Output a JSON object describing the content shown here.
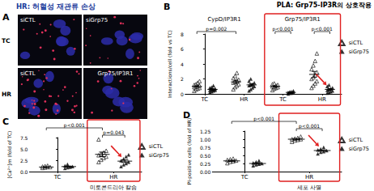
{
  "panel_a": {
    "panel": "A",
    "title": "HR: 허혈성 재관류 손상",
    "rows": [
      "TC",
      "HR"
    ],
    "images": [
      {
        "row": "TC",
        "label": "siCTL"
      },
      {
        "row": "TC",
        "label": "siGrp75"
      },
      {
        "row": "HR",
        "label": "siCTL"
      },
      {
        "row": "HR"
      }
    ],
    "stain_label": "Grp75/IP3R1"
  },
  "chart_data": [
    {
      "panel": "B",
      "type": "scatter",
      "title": "PLA: Grp75-IP3R의 상호작용",
      "ylabel": "Interactions/cell (fold vs TC)",
      "categories": [
        "TC",
        "HR",
        "TC",
        "HR"
      ],
      "groups": [
        {
          "label": "CypD/IP3R1",
          "categories": [
            0,
            1
          ]
        },
        {
          "label": "Grp75/IP3R1",
          "categories": [
            2,
            3
          ]
        }
      ],
      "ylim": [
        0,
        8
      ],
      "yticks": [
        0,
        2,
        4,
        6,
        8
      ],
      "grid": false,
      "legend": "right",
      "series": [
        {
          "name": "siCTL",
          "color": "#000000",
          "marker": "open-triangle",
          "values": [
            [
              0.4,
              0.6,
              0.7,
              0.8,
              0.9,
              1.0,
              1.0,
              1.1,
              1.2,
              1.3,
              1.5,
              1.7
            ],
            [
              0.6,
              0.9,
              1.1,
              1.3,
              1.5,
              1.6,
              1.8,
              1.9,
              2.1,
              2.4,
              2.8
            ],
            [
              0.5,
              0.7,
              0.8,
              0.9,
              1.0,
              1.0,
              1.1,
              1.2,
              1.3,
              1.4
            ],
            [
              0.8,
              1.1,
              1.4,
              1.7,
              2.0,
              2.2,
              2.5,
              2.9,
              3.3,
              3.8,
              4.4,
              5.4
            ]
          ],
          "mean": [
            1.0,
            1.6,
            1.0,
            2.6
          ],
          "error": [
            0.1,
            0.2,
            0.08,
            0.4
          ]
        },
        {
          "name": "siGrp75",
          "color": "#000000",
          "marker": "triangle",
          "values": [
            [
              0.2,
              0.3,
              0.4,
              0.5,
              0.5,
              0.6,
              0.6,
              0.7,
              0.8,
              0.9,
              1.1
            ],
            [
              0.4,
              0.6,
              0.8,
              1.0,
              1.1,
              1.2,
              1.3,
              1.5,
              1.7,
              2.0
            ],
            [
              0.0,
              0.1,
              0.1,
              0.2,
              0.2,
              0.3,
              0.3,
              0.4
            ],
            [
              0.1,
              0.2,
              0.3,
              0.4,
              0.5,
              0.6,
              0.7,
              0.8,
              1.0,
              1.2
            ]
          ],
          "mean": [
            0.6,
            1.2,
            0.2,
            0.6
          ],
          "error": [
            0.08,
            0.15,
            0.05,
            0.1
          ]
        }
      ],
      "comparisons": [
        {
          "text": "p=0.002",
          "between": [
            [
              0,
              0
            ],
            [
              1,
              0
            ]
          ]
        },
        {
          "text": "p<0.001",
          "between": [
            [
              2,
              0
            ],
            [
              2,
              1
            ]
          ]
        },
        {
          "text": "p<0.001",
          "between": [
            [
              3,
              0
            ],
            [
              3,
              1
            ]
          ]
        }
      ]
    },
    {
      "panel": "C",
      "type": "scatter",
      "title": "미토콘드리아 칼슘",
      "ylabel": "[Ca²⁺]m (fold of TC)",
      "categories": [
        "TC",
        "HR"
      ],
      "ylim": [
        0,
        7.5
      ],
      "yticks": [
        {
          "value": 0,
          "label": "0.0"
        },
        2.5,
        {
          "value": 5,
          "label": "5.0"
        },
        7.5
      ],
      "grid": false,
      "legend": "right",
      "series": [
        {
          "name": "siCTL",
          "color": "#000000",
          "marker": "open-triangle",
          "values": [
            [
              0.8,
              0.9,
              1.0,
              1.0,
              1.1,
              1.2,
              1.3
            ],
            [
              2.1,
              2.6,
              3.0,
              3.3,
              3.6,
              3.9,
              4.2,
              4.6,
              7.1
            ]
          ],
          "mean": [
            1.0,
            3.8
          ],
          "error": [
            0.07,
            0.5
          ]
        },
        {
          "name": "siGrp75",
          "color": "#000000",
          "marker": "triangle",
          "values": [
            [
              0.7,
              0.9,
              1.0,
              1.1,
              1.3,
              1.6
            ],
            [
              1.1,
              1.5,
              1.8,
              2.1,
              2.4,
              2.8,
              3.3,
              3.7
            ]
          ],
          "mean": [
            1.1,
            2.3
          ],
          "error": [
            0.1,
            0.3
          ]
        }
      ],
      "comparisons": [
        {
          "text": "p<0.001",
          "between": [
            [
              0,
              0
            ],
            [
              1,
              0
            ]
          ]
        },
        {
          "text": "p=0.043",
          "between": [
            [
              1,
              0
            ],
            [
              1,
              1
            ]
          ]
        }
      ]
    },
    {
      "panel": "D",
      "type": "scatter",
      "title": "세포 사멸",
      "ylabel": "PI-positive cells (fold of HR)",
      "categories": [
        "TC",
        "HR"
      ],
      "ylim": [
        0,
        1.25
      ],
      "yticks": [
        {
          "value": 0,
          "label": "0.00"
        },
        0.25,
        {
          "value": 0.5,
          "label": "0.50"
        },
        0.75,
        {
          "value": 1,
          "label": "1.00"
        },
        1.25
      ],
      "grid": false,
      "legend": "right",
      "series": [
        {
          "name": "siCTL",
          "color": "#000000",
          "marker": "open-triangle",
          "values": [
            [
              0.26,
              0.3,
              0.32,
              0.34,
              0.36,
              0.38,
              0.4
            ],
            [
              0.92,
              0.96,
              0.98,
              1.0,
              1.0,
              1.02,
              1.04,
              1.08
            ]
          ],
          "mean": [
            0.33,
            1.0
          ],
          "error": [
            0.02,
            0.02
          ]
        },
        {
          "name": "siGrp75",
          "color": "#000000",
          "marker": "triangle",
          "values": [
            [
              0.18,
              0.21,
              0.23,
              0.25,
              0.27,
              0.3,
              0.34
            ],
            [
              0.55,
              0.6,
              0.62,
              0.65,
              0.67,
              0.7,
              0.75
            ]
          ],
          "mean": [
            0.25,
            0.65
          ],
          "error": [
            0.02,
            0.02
          ]
        }
      ],
      "comparisons": [
        {
          "text": "p<0.001",
          "between": [
            [
              0,
              0
            ],
            [
              1,
              0
            ]
          ]
        },
        {
          "text": "p<0.001",
          "between": [
            [
              1,
              0
            ],
            [
              1,
              1
            ]
          ]
        }
      ]
    }
  ]
}
